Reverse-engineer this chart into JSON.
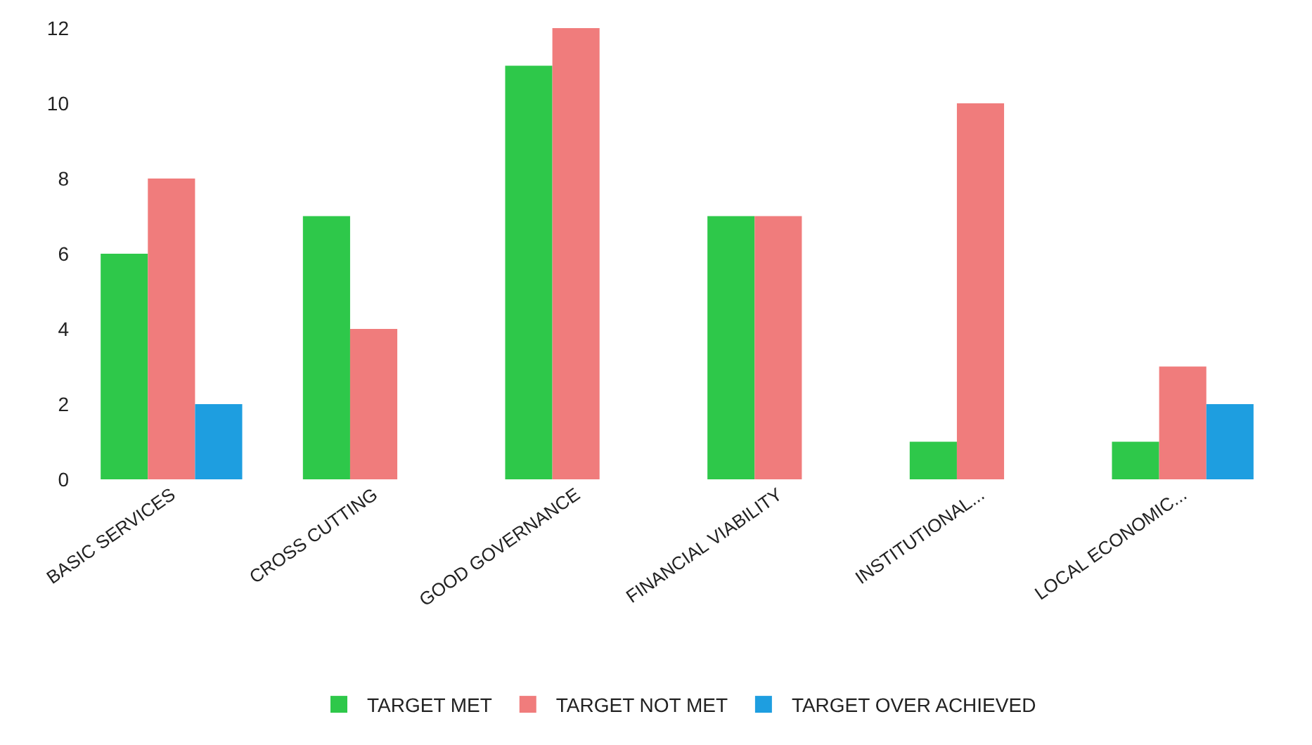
{
  "chart_data": {
    "type": "bar",
    "categories": [
      "BASIC SERVICES",
      "CROSS CUTTING",
      "GOOD GOVERNANCE",
      "FINANCIAL VIABILITY",
      "INSTITUTIONAL...",
      "LOCAL ECONOMIC..."
    ],
    "series": [
      {
        "name": "TARGET MET",
        "color": "#2ec84a",
        "values": [
          6,
          7,
          11,
          7,
          1,
          1
        ]
      },
      {
        "name": "TARGET NOT MET",
        "color": "#f07c7c",
        "values": [
          8,
          4,
          12,
          7,
          10,
          3
        ]
      },
      {
        "name": "TARGET OVER ACHIEVED",
        "color": "#1e9ee0",
        "values": [
          2,
          0,
          0,
          0,
          0,
          2
        ]
      }
    ],
    "ylim": [
      0,
      12
    ],
    "yticks": [
      0,
      2,
      4,
      6,
      8,
      10,
      12
    ],
    "grid": false,
    "legend": "bottom"
  }
}
